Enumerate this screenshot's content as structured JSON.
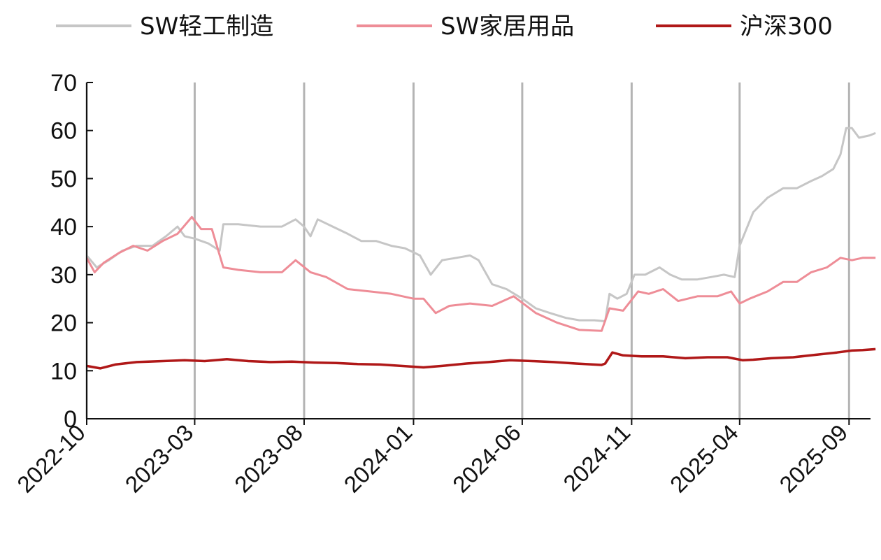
{
  "chart_data": {
    "type": "line",
    "title": "",
    "xlabel": "",
    "ylabel": "",
    "ylim": [
      0,
      70
    ],
    "y_ticks": [
      "0",
      "10",
      "20",
      "30",
      "40",
      "50",
      "60",
      "70"
    ],
    "x_ticks": [
      "2022-10",
      "2023-03",
      "2023-08",
      "2024-01",
      "2024-06",
      "2024-11",
      "2025-04",
      "2025-09"
    ],
    "xlim": [
      "2022-10",
      "2025-10"
    ],
    "grid": "vertical lines at x ticks",
    "legend_position": "top",
    "colors": {
      "light": "#c6c6c6",
      "home": "#ee8d97",
      "hs300": "#b01818",
      "grid": "#b4b4b4",
      "axis": "#111111"
    },
    "series": [
      {
        "name": "SW轻工制造",
        "color": "#c6c6c6",
        "points": [
          [
            "2022-10-01",
            34
          ],
          [
            "2022-10-15",
            31.5
          ],
          [
            "2022-11-01",
            33
          ],
          [
            "2022-11-20",
            35
          ],
          [
            "2022-12-10",
            36
          ],
          [
            "2023-01-01",
            36
          ],
          [
            "2023-01-20",
            38
          ],
          [
            "2023-02-05",
            40
          ],
          [
            "2023-02-15",
            38
          ],
          [
            "2023-03-01",
            37.5
          ],
          [
            "2023-03-20",
            36.5
          ],
          [
            "2023-04-05",
            35
          ],
          [
            "2023-04-10",
            40.5
          ],
          [
            "2023-05-01",
            40.5
          ],
          [
            "2023-06-01",
            40
          ],
          [
            "2023-07-01",
            40
          ],
          [
            "2023-07-20",
            41.5
          ],
          [
            "2023-08-01",
            40
          ],
          [
            "2023-08-10",
            38
          ],
          [
            "2023-08-20",
            41.5
          ],
          [
            "2023-09-10",
            40
          ],
          [
            "2023-10-01",
            38.5
          ],
          [
            "2023-10-20",
            37
          ],
          [
            "2023-11-10",
            37
          ],
          [
            "2023-12-01",
            36
          ],
          [
            "2023-12-20",
            35.5
          ],
          [
            "2024-01-10",
            34
          ],
          [
            "2024-01-25",
            30
          ],
          [
            "2024-02-10",
            33
          ],
          [
            "2024-03-01",
            33.5
          ],
          [
            "2024-03-20",
            34
          ],
          [
            "2024-04-01",
            33
          ],
          [
            "2024-04-20",
            28
          ],
          [
            "2024-05-10",
            27
          ],
          [
            "2024-06-01",
            25
          ],
          [
            "2024-06-20",
            23
          ],
          [
            "2024-07-10",
            22
          ],
          [
            "2024-08-01",
            21
          ],
          [
            "2024-08-20",
            20.5
          ],
          [
            "2024-09-10",
            20.5
          ],
          [
            "2024-09-25",
            20.3
          ],
          [
            "2024-10-01",
            26
          ],
          [
            "2024-10-12",
            25
          ],
          [
            "2024-10-25",
            26
          ],
          [
            "2024-11-05",
            30
          ],
          [
            "2024-11-20",
            30
          ],
          [
            "2024-12-10",
            31.5
          ],
          [
            "2024-12-25",
            30
          ],
          [
            "2025-01-10",
            29
          ],
          [
            "2025-02-01",
            29
          ],
          [
            "2025-02-20",
            29.5
          ],
          [
            "2025-03-10",
            30
          ],
          [
            "2025-03-25",
            29.5
          ],
          [
            "2025-04-01",
            36
          ],
          [
            "2025-04-20",
            43
          ],
          [
            "2025-05-10",
            46
          ],
          [
            "2025-06-01",
            48
          ],
          [
            "2025-06-20",
            48
          ],
          [
            "2025-07-10",
            49.5
          ],
          [
            "2025-07-25",
            50.5
          ],
          [
            "2025-08-10",
            52
          ],
          [
            "2025-08-20",
            55
          ],
          [
            "2025-08-28",
            60.5
          ],
          [
            "2025-09-05",
            60.5
          ],
          [
            "2025-09-15",
            58.5
          ],
          [
            "2025-09-30",
            59
          ],
          [
            "2025-10-08",
            59.5
          ]
        ]
      },
      {
        "name": "SW家居用品",
        "color": "#ee8d97",
        "points": [
          [
            "2022-10-01",
            33.5
          ],
          [
            "2022-10-12",
            30.5
          ],
          [
            "2022-10-25",
            32.5
          ],
          [
            "2022-11-15",
            34.5
          ],
          [
            "2022-12-05",
            36
          ],
          [
            "2022-12-25",
            35
          ],
          [
            "2023-01-15",
            37
          ],
          [
            "2023-02-05",
            38.5
          ],
          [
            "2023-02-25",
            42
          ],
          [
            "2023-03-10",
            39.5
          ],
          [
            "2023-03-25",
            39.5
          ],
          [
            "2023-04-10",
            31.5
          ],
          [
            "2023-05-01",
            31
          ],
          [
            "2023-06-01",
            30.5
          ],
          [
            "2023-07-01",
            30.5
          ],
          [
            "2023-07-20",
            33
          ],
          [
            "2023-08-10",
            30.5
          ],
          [
            "2023-09-01",
            29.5
          ],
          [
            "2023-10-01",
            27
          ],
          [
            "2023-11-01",
            26.5
          ],
          [
            "2023-12-01",
            26
          ],
          [
            "2024-01-01",
            25
          ],
          [
            "2024-01-15",
            25
          ],
          [
            "2024-02-01",
            22
          ],
          [
            "2024-02-20",
            23.5
          ],
          [
            "2024-03-20",
            24
          ],
          [
            "2024-04-20",
            23.5
          ],
          [
            "2024-05-20",
            25.5
          ],
          [
            "2024-06-20",
            22
          ],
          [
            "2024-07-20",
            20
          ],
          [
            "2024-08-20",
            18.5
          ],
          [
            "2024-09-20",
            18.3
          ],
          [
            "2024-10-01",
            23
          ],
          [
            "2024-10-20",
            22.5
          ],
          [
            "2024-11-10",
            26.5
          ],
          [
            "2024-11-25",
            26
          ],
          [
            "2024-12-15",
            27
          ],
          [
            "2025-01-05",
            24.5
          ],
          [
            "2025-02-01",
            25.5
          ],
          [
            "2025-03-01",
            25.5
          ],
          [
            "2025-03-20",
            26.5
          ],
          [
            "2025-04-01",
            24
          ],
          [
            "2025-04-15",
            25
          ],
          [
            "2025-05-10",
            26.5
          ],
          [
            "2025-06-01",
            28.5
          ],
          [
            "2025-06-20",
            28.5
          ],
          [
            "2025-07-10",
            30.5
          ],
          [
            "2025-08-01",
            31.5
          ],
          [
            "2025-08-20",
            33.5
          ],
          [
            "2025-09-05",
            33
          ],
          [
            "2025-09-20",
            33.5
          ],
          [
            "2025-10-08",
            33.5
          ]
        ]
      },
      {
        "name": "沪深300",
        "color": "#b01818",
        "points": [
          [
            "2022-10-01",
            11
          ],
          [
            "2022-10-20",
            10.5
          ],
          [
            "2022-11-10",
            11.3
          ],
          [
            "2022-12-10",
            11.8
          ],
          [
            "2023-01-15",
            12
          ],
          [
            "2023-02-15",
            12.2
          ],
          [
            "2023-03-15",
            12
          ],
          [
            "2023-04-15",
            12.4
          ],
          [
            "2023-05-15",
            12
          ],
          [
            "2023-06-15",
            11.8
          ],
          [
            "2023-07-15",
            11.9
          ],
          [
            "2023-08-15",
            11.7
          ],
          [
            "2023-09-15",
            11.6
          ],
          [
            "2023-10-15",
            11.4
          ],
          [
            "2023-11-15",
            11.3
          ],
          [
            "2023-12-15",
            11
          ],
          [
            "2024-01-15",
            10.7
          ],
          [
            "2024-02-10",
            11
          ],
          [
            "2024-03-15",
            11.5
          ],
          [
            "2024-04-15",
            11.8
          ],
          [
            "2024-05-15",
            12.2
          ],
          [
            "2024-06-15",
            12
          ],
          [
            "2024-07-15",
            11.8
          ],
          [
            "2024-08-15",
            11.5
          ],
          [
            "2024-09-20",
            11.2
          ],
          [
            "2024-09-25",
            11.5
          ],
          [
            "2024-10-05",
            13.8
          ],
          [
            "2024-10-20",
            13.2
          ],
          [
            "2024-11-15",
            13
          ],
          [
            "2024-12-15",
            13
          ],
          [
            "2025-01-15",
            12.6
          ],
          [
            "2025-02-15",
            12.8
          ],
          [
            "2025-03-15",
            12.8
          ],
          [
            "2025-04-05",
            12.2
          ],
          [
            "2025-04-20",
            12.3
          ],
          [
            "2025-05-15",
            12.6
          ],
          [
            "2025-06-15",
            12.8
          ],
          [
            "2025-07-15",
            13.3
          ],
          [
            "2025-08-15",
            13.8
          ],
          [
            "2025-09-05",
            14.2
          ],
          [
            "2025-09-20",
            14.3
          ],
          [
            "2025-10-08",
            14.5
          ]
        ]
      }
    ]
  }
}
